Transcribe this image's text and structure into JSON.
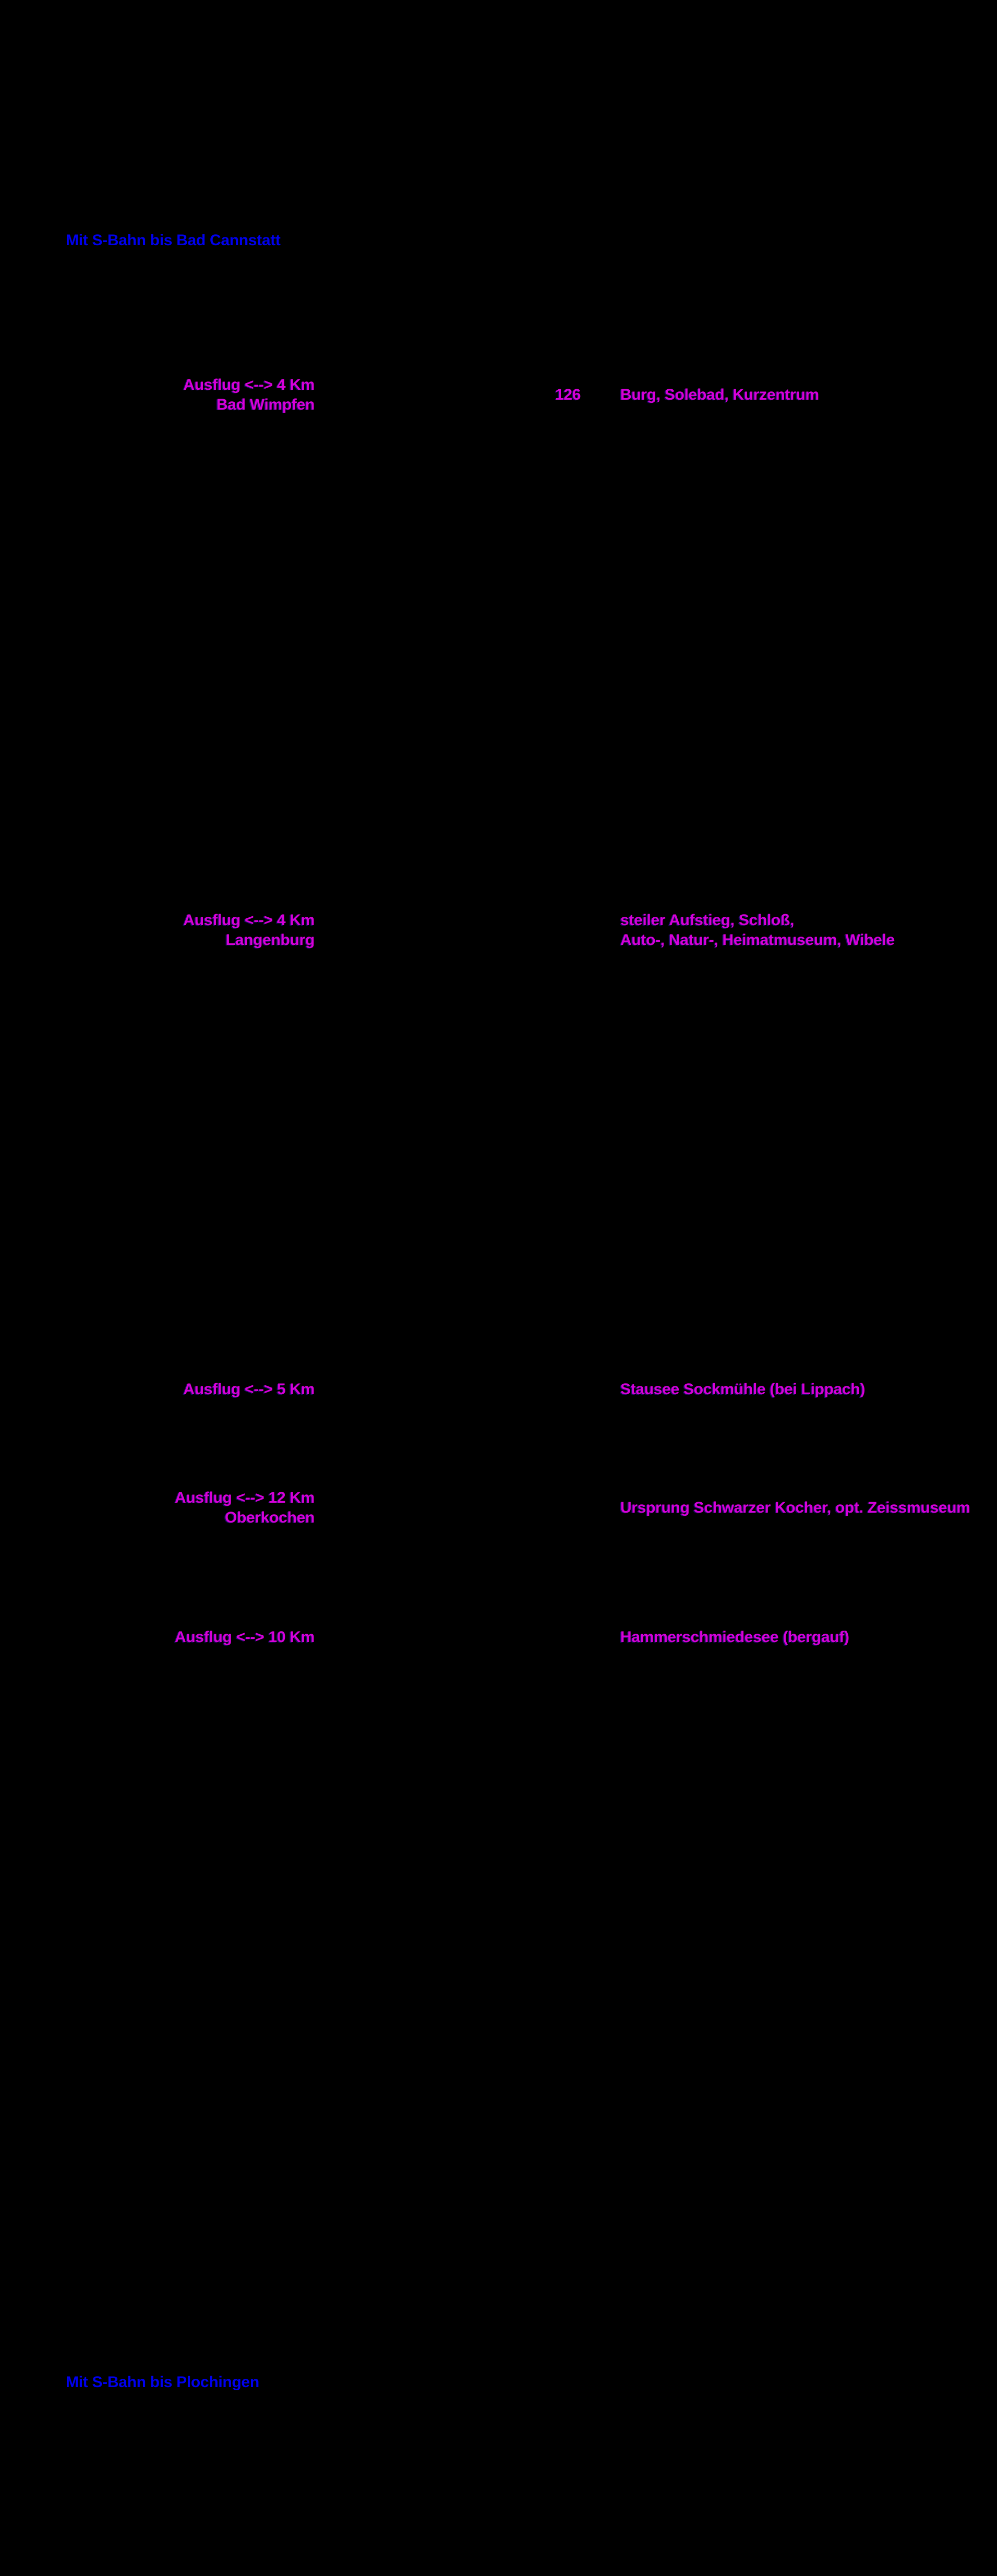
{
  "page": {
    "background": "#000000"
  },
  "colors": {
    "sbahn_note_blue": "#0000EE",
    "highlight_magenta": "#D800D8"
  },
  "notes": {
    "top": "Mit S-Bahn bis Bad Cannstatt",
    "bottom": "Mit S-Bahn bis Plochingen"
  },
  "rows": [
    {
      "left_line1": "Ausflug <--> 4 Km",
      "left_line2": "Bad Wimpfen",
      "km_marker": "126",
      "right_line1": "Burg, Solebad, Kurzentrum"
    },
    {
      "left_line1": "Ausflug <--> 4 Km",
      "left_line2": "Langenburg",
      "right_line1": "steiler Aufstieg, Schloß,",
      "right_line2": "Auto-, Natur-, Heimatmuseum, Wibele"
    },
    {
      "left_line1": "Ausflug <--> 5 Km",
      "right_line1": "Stausee Sockmühle (bei Lippach)"
    },
    {
      "left_line1": "Ausflug <--> 12 Km",
      "left_line2": "Oberkochen",
      "right_line1": "Ursprung Schwarzer Kocher, opt. Zeissmuseum"
    },
    {
      "left_line1": "Ausflug <--> 10 Km",
      "right_line1": "Hammerschmiedesee (bergauf)"
    }
  ]
}
